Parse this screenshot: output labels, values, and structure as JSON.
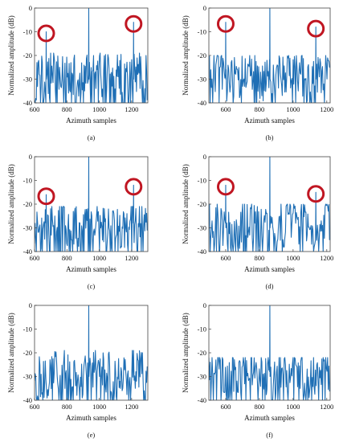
{
  "chart_data": [
    {
      "type": "line",
      "caption": "(a)",
      "xlabel": "Azimuth samples",
      "ylabel": "Normalized amplitude (dB)",
      "xlim": [
        600,
        1300
      ],
      "ylim": [
        -40,
        0
      ],
      "xticks": [
        600,
        800,
        1000,
        1200
      ],
      "yticks": [
        0,
        -10,
        -20,
        -30,
        -40
      ],
      "main_peak": {
        "x": 935,
        "y": 0
      },
      "side_peaks": [
        {
          "x": 672,
          "y": -10
        },
        {
          "x": 1212,
          "y": -6
        }
      ],
      "noise_floor": [
        -40,
        -19
      ],
      "circled_peaks": [
        672,
        1212
      ]
    },
    {
      "type": "line",
      "caption": "(b)",
      "xlabel": "Azimuth samples",
      "ylabel": "Normalized amplitude (dB)",
      "xlim": [
        500,
        1220
      ],
      "ylim": [
        -40,
        0
      ],
      "xticks": [
        600,
        800,
        1000,
        1200
      ],
      "yticks": [
        0,
        -10,
        -20,
        -30,
        -40
      ],
      "main_peak": {
        "x": 862,
        "y": 0
      },
      "side_peaks": [
        {
          "x": 600,
          "y": -6
        },
        {
          "x": 1135,
          "y": -8
        }
      ],
      "noise_floor": [
        -40,
        -20
      ],
      "circled_peaks": [
        600,
        1135
      ]
    },
    {
      "type": "line",
      "caption": "(c)",
      "xlabel": "Azimuth samples",
      "ylabel": "Normalized amplitude (dB)",
      "xlim": [
        600,
        1300
      ],
      "ylim": [
        -40,
        0
      ],
      "xticks": [
        600,
        800,
        1000,
        1200
      ],
      "yticks": [
        0,
        -10,
        -20,
        -30,
        -40
      ],
      "main_peak": {
        "x": 935,
        "y": 0
      },
      "side_peaks": [
        {
          "x": 672,
          "y": -16
        },
        {
          "x": 1212,
          "y": -12
        }
      ],
      "noise_floor": [
        -40,
        -21
      ],
      "circled_peaks": [
        672,
        1212
      ]
    },
    {
      "type": "line",
      "caption": "(d)",
      "xlabel": "Azimuth samples",
      "ylabel": "Normalized amplitude (dB)",
      "xlim": [
        500,
        1220
      ],
      "ylim": [
        -40,
        0
      ],
      "xticks": [
        600,
        800,
        1000,
        1200
      ],
      "yticks": [
        0,
        -10,
        -20,
        -30,
        -40
      ],
      "main_peak": {
        "x": 862,
        "y": 0
      },
      "side_peaks": [
        {
          "x": 600,
          "y": -12
        },
        {
          "x": 1135,
          "y": -15
        }
      ],
      "noise_floor": [
        -40,
        -20
      ],
      "circled_peaks": [
        600,
        1135
      ]
    },
    {
      "type": "line",
      "caption": "(e)",
      "xlabel": "Azimuth samples",
      "ylabel": "Normalized amplitude (dB)",
      "xlim": [
        600,
        1300
      ],
      "ylim": [
        -40,
        0
      ],
      "xticks": [
        600,
        800,
        1000,
        1200
      ],
      "yticks": [
        0,
        -10,
        -20,
        -30,
        -40
      ],
      "main_peak": {
        "x": 935,
        "y": 0
      },
      "side_peaks": [],
      "noise_floor": [
        -40,
        -19
      ],
      "circled_peaks": []
    },
    {
      "type": "line",
      "caption": "(f)",
      "xlabel": "Azimuth samples",
      "ylabel": "Normalized amplitude (dB)",
      "xlim": [
        500,
        1220
      ],
      "ylim": [
        -40,
        0
      ],
      "xticks": [
        600,
        800,
        1000,
        1200
      ],
      "yticks": [
        0,
        -10,
        -20,
        -30,
        -40
      ],
      "main_peak": {
        "x": 862,
        "y": 0
      },
      "side_peaks": [],
      "noise_floor": [
        -40,
        -22
      ],
      "circled_peaks": []
    }
  ],
  "colors": {
    "line": "#1f6fb5",
    "circle": "#c01622"
  }
}
